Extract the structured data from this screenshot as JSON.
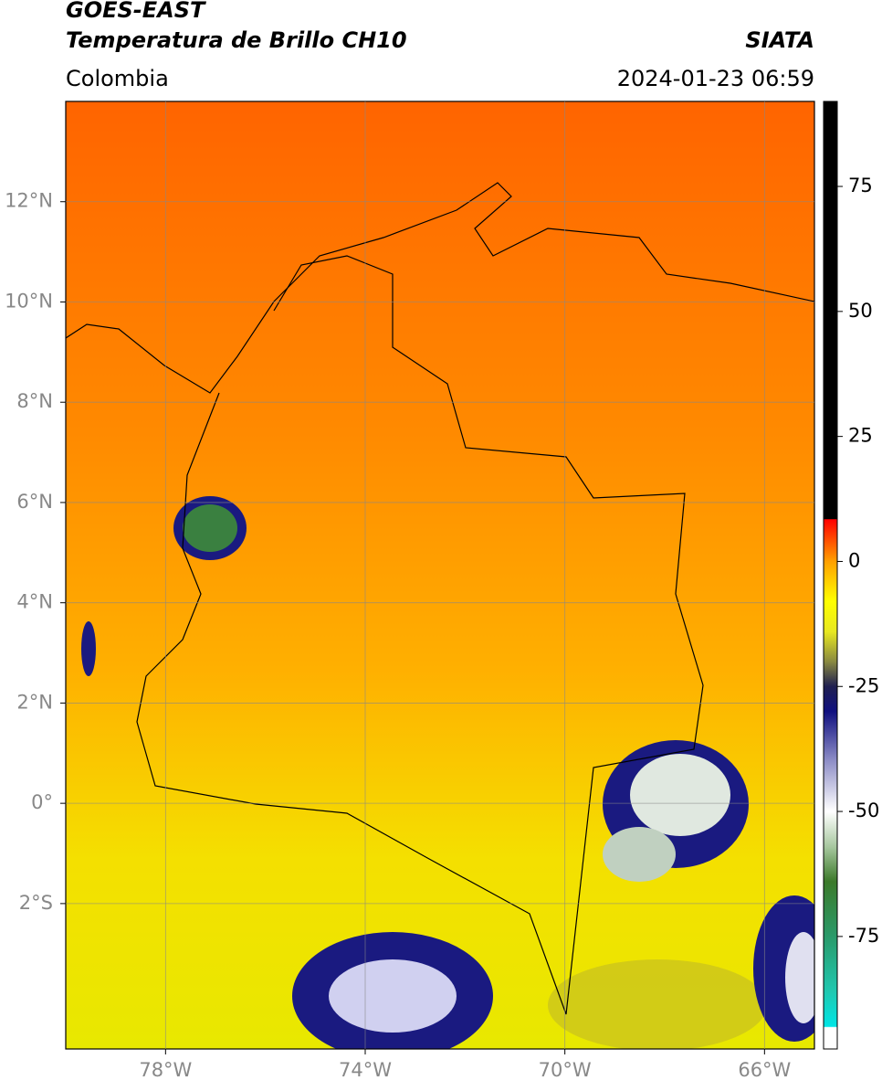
{
  "header": {
    "title": "GOES-EAST",
    "subtitle": "Temperatura de Brillo CH10",
    "source": "SIATA",
    "region": "Colombia",
    "datetime": "2024-01-23 06:59"
  },
  "map": {
    "xlim": [
      -80,
      -65
    ],
    "ylim": [
      -4.9,
      14
    ],
    "xticks": [
      {
        "value": -78,
        "label": "78°W"
      },
      {
        "value": -74,
        "label": "74°W"
      },
      {
        "value": -70,
        "label": "70°W"
      },
      {
        "value": -66,
        "label": "66°W"
      }
    ],
    "yticks": [
      {
        "value": 12,
        "label": "12°N"
      },
      {
        "value": 10,
        "label": "10°N"
      },
      {
        "value": 8,
        "label": "8°N"
      },
      {
        "value": 6,
        "label": "6°N"
      },
      {
        "value": 4,
        "label": "4°N"
      },
      {
        "value": 2,
        "label": "2°N"
      },
      {
        "value": 0,
        "label": "0°"
      },
      {
        "value": -2,
        "label": "2°S"
      }
    ],
    "grid": true
  },
  "colorbar": {
    "lim": [
      -97.5,
      92
    ],
    "ticks": [
      75,
      50,
      25,
      0,
      -25,
      -50,
      -75
    ],
    "stops": [
      {
        "value": -97.5,
        "color": "#ffffff"
      },
      {
        "value": -93.2,
        "color": "#ffffff"
      },
      {
        "value": -93,
        "color": "#00e5e5"
      },
      {
        "value": -86,
        "color": "#20c8b0"
      },
      {
        "value": -75,
        "color": "#2a9a6a"
      },
      {
        "value": -64,
        "color": "#3c7a2a"
      },
      {
        "value": -57,
        "color": "#a8c8a0"
      },
      {
        "value": -50,
        "color": "#ffffff"
      },
      {
        "value": -40,
        "color": "#9090c8"
      },
      {
        "value": -30,
        "color": "#101080"
      },
      {
        "value": -25,
        "color": "#202050"
      },
      {
        "value": -20,
        "color": "#8a8a40"
      },
      {
        "value": -14,
        "color": "#e8e820"
      },
      {
        "value": -8,
        "color": "#ffff00"
      },
      {
        "value": 0,
        "color": "#ffa000"
      },
      {
        "value": 5,
        "color": "#ff4000"
      },
      {
        "value": 8.4,
        "color": "#ff0000"
      },
      {
        "value": 8.5,
        "color": "#000000"
      },
      {
        "value": 92,
        "color": "#000000"
      }
    ]
  }
}
